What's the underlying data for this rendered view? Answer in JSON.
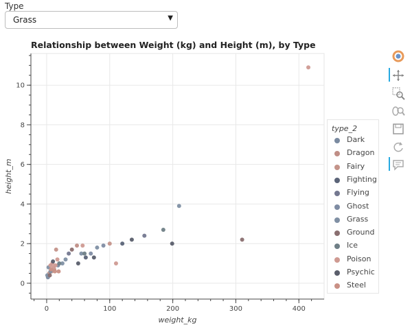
{
  "select": {
    "label": "Type",
    "value": "Grass"
  },
  "chart_data": {
    "type": "scatter",
    "title": "Relationship between Weight (kg) and Height (m), by Type",
    "xlabel": "weight_kg",
    "ylabel": "height_m",
    "xlim": [
      -25,
      440
    ],
    "ylim": [
      -0.8,
      11.6
    ],
    "x_ticks": [
      0,
      100,
      200,
      300,
      400
    ],
    "y_ticks": [
      0,
      2,
      4,
      6,
      8,
      10
    ],
    "grid": true,
    "legend_title": "type_2",
    "legend_position": "right",
    "series": [
      {
        "name": "Dark",
        "color": "#7a8aa0",
        "points": [
          [
            2,
            0.3
          ],
          [
            18,
            0.9
          ]
        ]
      },
      {
        "name": "Dragon",
        "color": "#c08e86",
        "points": [
          [
            48,
            1.9
          ]
        ]
      },
      {
        "name": "Fairy",
        "color": "#c4948a",
        "points": [
          [
            4,
            0.5
          ],
          [
            8,
            0.6
          ],
          [
            12,
            0.7
          ],
          [
            15,
            1.7
          ],
          [
            100,
            2.0
          ]
        ]
      },
      {
        "name": "Fighting",
        "color": "#5b6478",
        "points": [
          [
            62,
            1.3
          ],
          [
            120,
            2.0
          ]
        ]
      },
      {
        "name": "Flying",
        "color": "#747890",
        "points": [
          [
            35,
            1.5
          ],
          [
            155,
            2.4
          ]
        ]
      },
      {
        "name": "Ghost",
        "color": "#7f8ca3",
        "points": [
          [
            70,
            1.5
          ],
          [
            90,
            1.9
          ]
        ]
      },
      {
        "name": "Grass",
        "color": "#8090a4",
        "points": [
          [
            1,
            0.4
          ],
          [
            3,
            0.8
          ],
          [
            6,
            0.6
          ],
          [
            25,
            1.0
          ],
          [
            30,
            1.2
          ],
          [
            55,
            1.5
          ],
          [
            80,
            1.8
          ],
          [
            210,
            3.9
          ]
        ]
      },
      {
        "name": "Ground",
        "color": "#8a6f70",
        "points": [
          [
            5,
            0.4
          ],
          [
            40,
            1.7
          ],
          [
            310,
            2.2
          ]
        ]
      },
      {
        "name": "Ice",
        "color": "#6f7f86",
        "points": [
          [
            20,
            1.0
          ],
          [
            60,
            1.5
          ],
          [
            185,
            2.7
          ]
        ]
      },
      {
        "name": "Poison",
        "color": "#cf9a92",
        "points": [
          [
            6,
            0.9
          ],
          [
            9,
            1.0
          ],
          [
            11,
            0.8
          ],
          [
            14,
            0.9
          ],
          [
            17,
            1.2
          ],
          [
            57,
            1.9
          ],
          [
            110,
            1.0
          ],
          [
            415,
            10.9
          ]
        ]
      },
      {
        "name": "Psychic",
        "color": "#5a5e6b",
        "points": [
          [
            10,
            1.1
          ],
          [
            50,
            1.0
          ],
          [
            75,
            1.3
          ],
          [
            135,
            2.2
          ],
          [
            199,
            2.0
          ]
        ]
      },
      {
        "name": "Steel",
        "color": "#c99085",
        "points": [
          [
            7,
            0.7
          ],
          [
            13,
            0.6
          ],
          [
            19,
            0.6
          ]
        ]
      }
    ]
  }
}
